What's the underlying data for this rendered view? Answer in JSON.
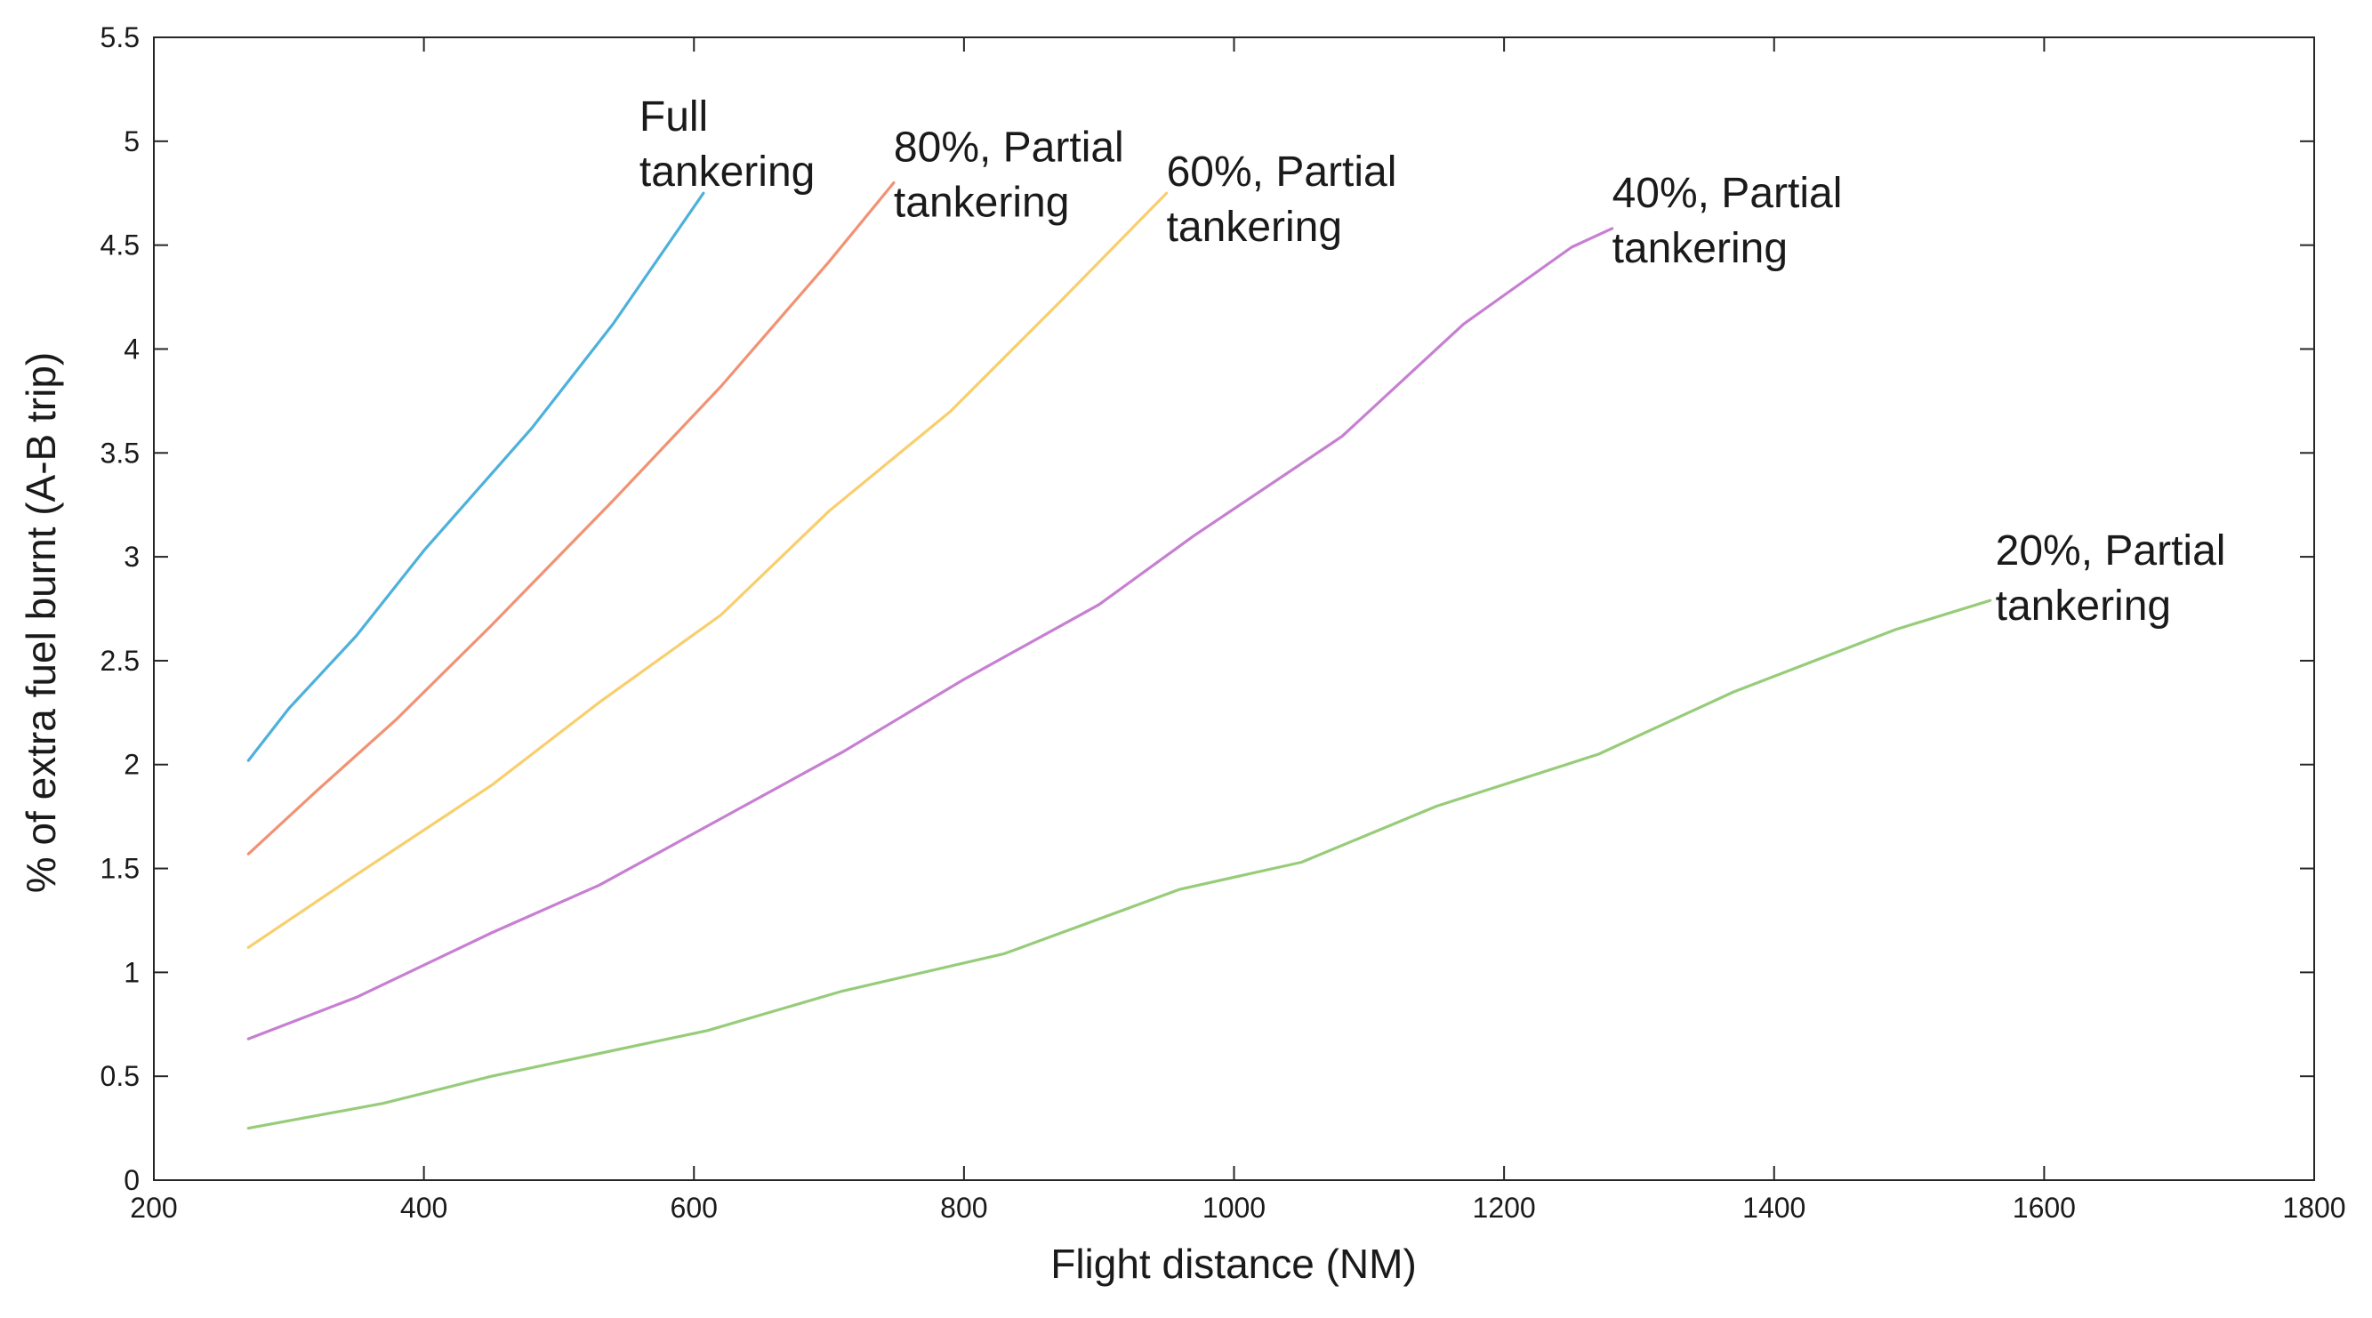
{
  "chart_data": {
    "type": "line",
    "title": "",
    "xlabel": "Flight distance (NM)",
    "ylabel": "% of extra fuel burnt (A-B trip)",
    "xlim": [
      200,
      1800
    ],
    "ylim": [
      0,
      5.5
    ],
    "xticks": [
      "200",
      "400",
      "600",
      "800",
      "1000",
      "1200",
      "1400",
      "1600",
      "1800"
    ],
    "yticks": [
      "0",
      "0.5",
      "1",
      "1.5",
      "2",
      "2.5",
      "3",
      "3.5",
      "4",
      "4.5",
      "5",
      "5.5"
    ],
    "grid": false,
    "legend": "inline labels at line ends",
    "series": [
      {
        "name": "Full tankering",
        "label_lines": [
          "Full",
          "tankering"
        ],
        "color": "#4DB1DC",
        "x": [
          270,
          300,
          350,
          400,
          480,
          540,
          607
        ],
        "y": [
          2.02,
          2.27,
          2.62,
          3.03,
          3.62,
          4.12,
          4.75
        ]
      },
      {
        "name": "80%, Partial tankering",
        "label_lines": [
          "80%, Partial",
          "tankering"
        ],
        "color": "#F29274",
        "x": [
          270,
          320,
          380,
          450,
          540,
          620,
          700,
          748
        ],
        "y": [
          1.57,
          1.87,
          2.22,
          2.67,
          3.27,
          3.82,
          4.42,
          4.8
        ]
      },
      {
        "name": "60%, Partial tankering",
        "label_lines": [
          "60%, Partial",
          "tankering"
        ],
        "color": "#F9CE6D",
        "x": [
          270,
          350,
          450,
          530,
          620,
          700,
          790,
          870,
          950
        ],
        "y": [
          1.12,
          1.47,
          1.9,
          2.3,
          2.72,
          3.22,
          3.7,
          4.22,
          4.75
        ]
      },
      {
        "name": "40%, Partial tankering",
        "label_lines": [
          "40%, Partial",
          "tankering"
        ],
        "color": "#C77FD2",
        "x": [
          270,
          350,
          450,
          530,
          620,
          710,
          800,
          900,
          970,
          1080,
          1170,
          1250,
          1280
        ],
        "y": [
          0.68,
          0.88,
          1.19,
          1.42,
          1.74,
          2.06,
          2.41,
          2.77,
          3.1,
          3.58,
          4.12,
          4.49,
          4.58
        ]
      },
      {
        "name": "20%, Partial tankering",
        "label_lines": [
          "20%, Partial",
          "tankering"
        ],
        "color": "#97CC7A",
        "x": [
          270,
          370,
          450,
          530,
          610,
          710,
          830,
          960,
          1050,
          1150,
          1270,
          1370,
          1490,
          1560
        ],
        "y": [
          0.25,
          0.37,
          0.5,
          0.61,
          0.72,
          0.91,
          1.09,
          1.4,
          1.53,
          1.8,
          2.05,
          2.35,
          2.65,
          2.79
        ]
      }
    ]
  }
}
